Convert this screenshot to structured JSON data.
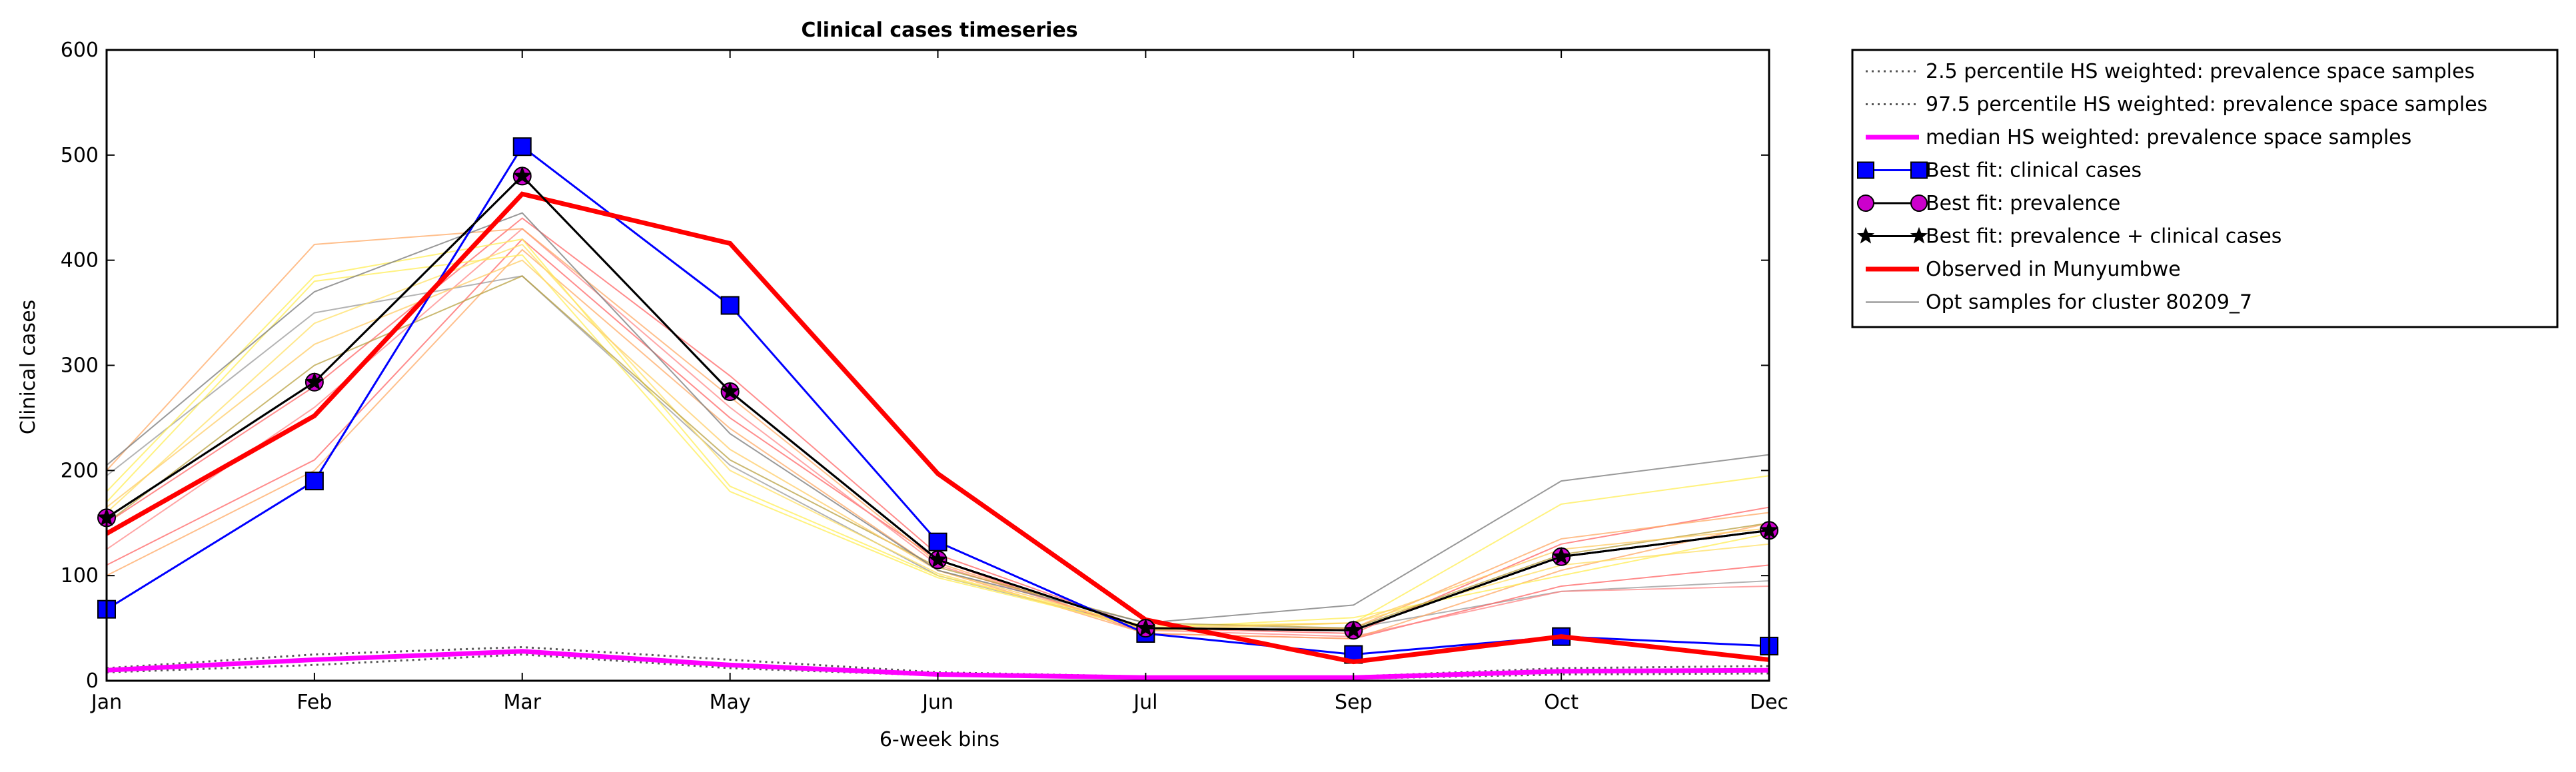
{
  "chart_data": {
    "type": "line",
    "title": "Clinical cases timeseries",
    "xlabel": "6-week bins",
    "ylabel": "Clinical cases",
    "categories": [
      "Jan",
      "Feb",
      "Mar",
      "May",
      "Jun",
      "Jul",
      "Sep",
      "Oct",
      "Dec"
    ],
    "ylim": [
      0,
      600
    ],
    "yticks": [
      0,
      100,
      200,
      300,
      400,
      500,
      600
    ],
    "grid": false,
    "legend_position": "outside-top-right",
    "series": [
      {
        "name": "2.5 percentile HS weighted: prevalence space samples",
        "style": "dotted",
        "color": "#555555",
        "values": [
          8,
          15,
          25,
          12,
          5,
          2,
          2,
          6,
          7
        ]
      },
      {
        "name": "97.5 percentile HS weighted: prevalence space samples",
        "style": "dotted",
        "color": "#555555",
        "values": [
          12,
          25,
          32,
          20,
          8,
          4,
          4,
          12,
          14
        ]
      },
      {
        "name": "median HS weighted: prevalence space samples",
        "style": "solid-thick",
        "color": "#ff00ff",
        "values": [
          10,
          20,
          28,
          15,
          6,
          3,
          3,
          9,
          10
        ]
      },
      {
        "name": "Best fit: clinical cases",
        "style": "line-square",
        "color": "#0000ff",
        "values": [
          68,
          190,
          508,
          357,
          132,
          45,
          25,
          42,
          33
        ]
      },
      {
        "name": "Best fit: prevalence",
        "style": "line-circle",
        "color": "#000000",
        "marker_color": "#cc00cc",
        "values": [
          155,
          284,
          480,
          275,
          115,
          50,
          48,
          118,
          143
        ]
      },
      {
        "name": "Best fit: prevalence + clinical cases",
        "style": "line-star",
        "color": "#000000",
        "values": [
          155,
          284,
          480,
          275,
          115,
          50,
          48,
          118,
          143
        ]
      },
      {
        "name": "Observed in Munyumbwe",
        "style": "solid-thick",
        "color": "#ff0000",
        "values": [
          140,
          252,
          463,
          416,
          197,
          58,
          18,
          42,
          20
        ]
      },
      {
        "name": "Opt samples for cluster 80209_7",
        "style": "solid-thin",
        "color": "#808080",
        "values": [
          205,
          370,
          445,
          235,
          105,
          55,
          72,
          190,
          215
        ]
      }
    ],
    "sample_lines": [
      {
        "color": "#999999",
        "values": [
          195,
          350,
          385,
          205,
          100,
          50,
          50,
          85,
          95
        ]
      },
      {
        "color": "#ff6666",
        "values": [
          150,
          280,
          440,
          290,
          120,
          50,
          45,
          130,
          165
        ]
      },
      {
        "color": "#ff6666",
        "values": [
          110,
          210,
          420,
          250,
          115,
          45,
          40,
          90,
          110
        ]
      },
      {
        "color": "#ff8888",
        "values": [
          125,
          260,
          430,
          260,
          110,
          48,
          42,
          85,
          90
        ]
      },
      {
        "color": "#ffaa66",
        "values": [
          200,
          415,
          430,
          270,
          112,
          48,
          50,
          135,
          160
        ]
      },
      {
        "color": "#ffaa66",
        "values": [
          100,
          200,
          410,
          240,
          105,
          45,
          40,
          105,
          150
        ]
      },
      {
        "color": "#ffee55",
        "values": [
          180,
          385,
          420,
          185,
          100,
          52,
          55,
          168,
          195
        ]
      },
      {
        "color": "#ffee55",
        "values": [
          170,
          380,
          405,
          180,
          98,
          50,
          60,
          100,
          140
        ]
      },
      {
        "color": "#ffe066",
        "values": [
          160,
          340,
          415,
          200,
          102,
          48,
          55,
          110,
          130
        ]
      },
      {
        "color": "#b8a040",
        "values": [
          150,
          300,
          385,
          210,
          108,
          55,
          50,
          120,
          150
        ]
      },
      {
        "color": "#ffcc66",
        "values": [
          165,
          320,
          400,
          220,
          105,
          50,
          55,
          125,
          145
        ]
      }
    ]
  }
}
